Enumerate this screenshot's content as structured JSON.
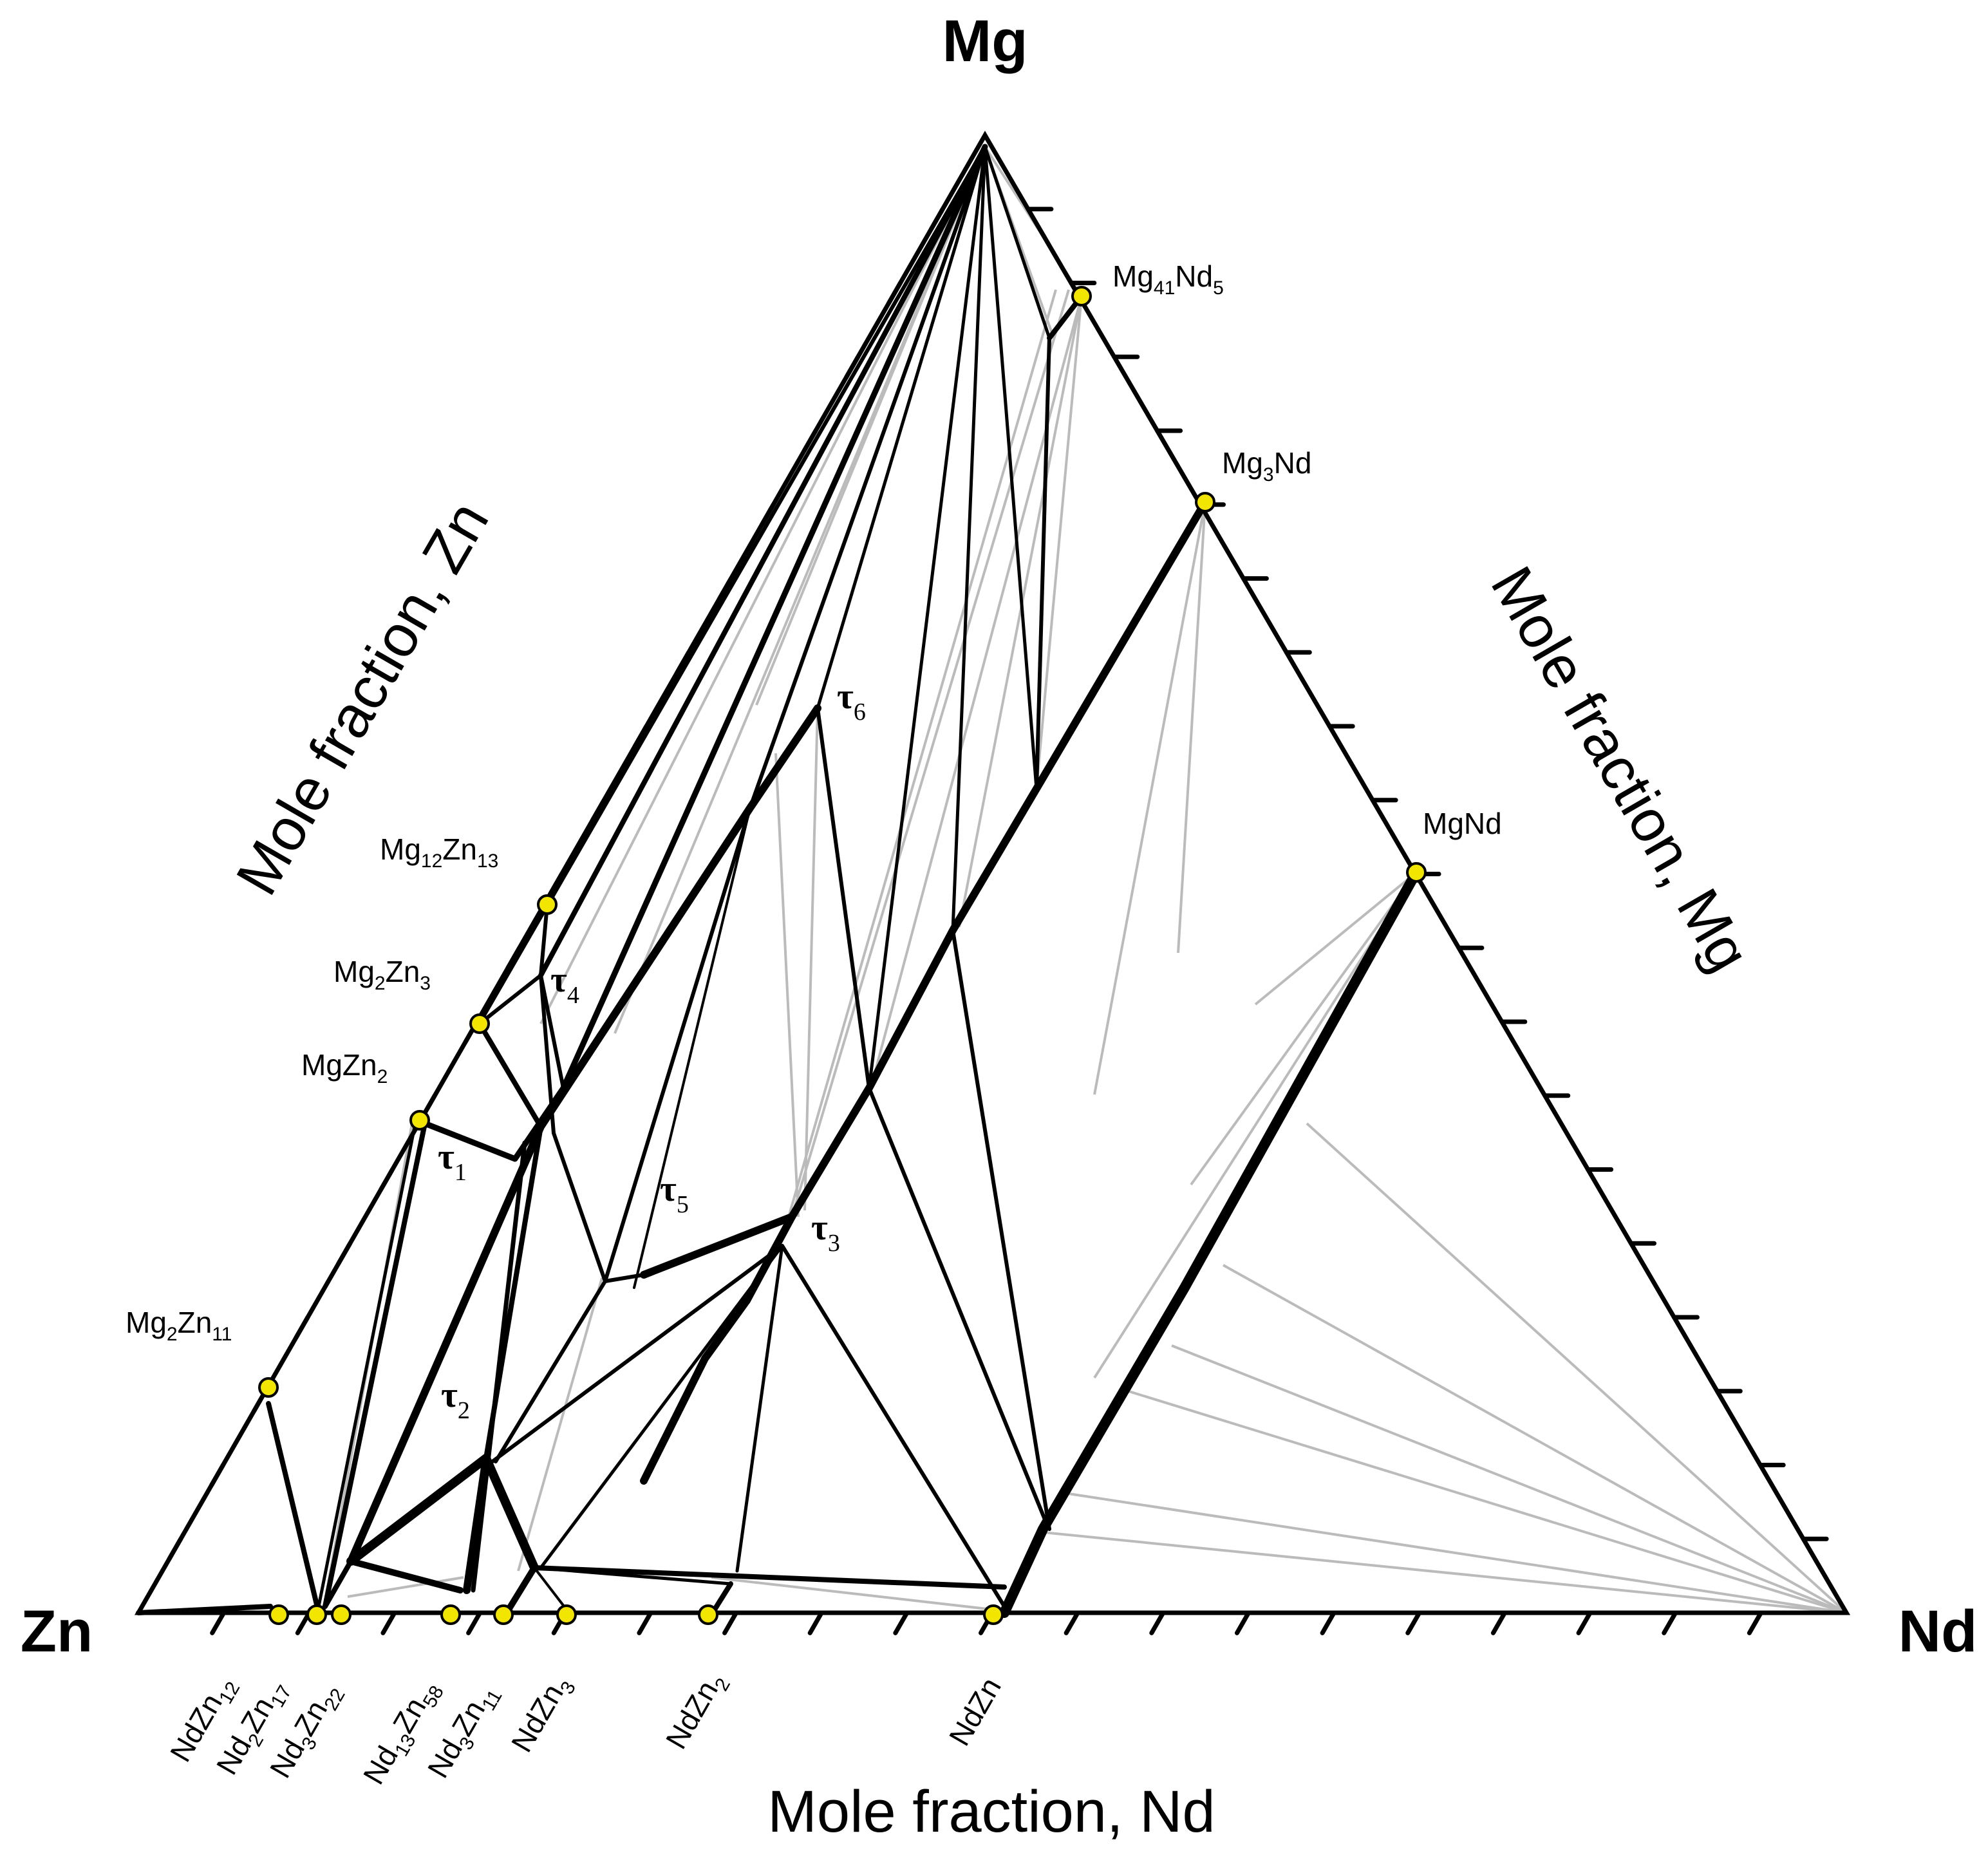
{
  "diagram": {
    "corners": {
      "top": "Mg",
      "left": "Zn",
      "right": "Nd"
    },
    "axes": {
      "left": "Mole fraction, Zn",
      "right": "Mole fraction, Mg",
      "bottom": "Mole fraction, Nd"
    },
    "binary_phases": {
      "mg_nd": [
        {
          "id": "mg41nd5",
          "base": "Mg",
          "s1": "41",
          "mid": "Nd",
          "s2": "5"
        },
        {
          "id": "mg3nd",
          "base": "Mg",
          "s1": "3",
          "mid": "Nd",
          "s2": ""
        },
        {
          "id": "mgnd",
          "base": "MgNd",
          "s1": "",
          "mid": "",
          "s2": ""
        }
      ],
      "mg_zn": [
        {
          "id": "mg12zn13",
          "base": "Mg",
          "s1": "12",
          "mid": "Zn",
          "s2": "13"
        },
        {
          "id": "mg2zn3",
          "base": "Mg",
          "s1": "2",
          "mid": "Zn",
          "s2": "3"
        },
        {
          "id": "mgzn2",
          "base": "MgZn",
          "s1": "2",
          "mid": "",
          "s2": ""
        },
        {
          "id": "mg2zn11",
          "base": "Mg",
          "s1": "2",
          "mid": "Zn",
          "s2": "11"
        }
      ],
      "nd_zn": [
        {
          "id": "ndzn12",
          "base": "NdZn",
          "s1": "12",
          "mid": "",
          "s2": ""
        },
        {
          "id": "nd2zn17",
          "base": "Nd",
          "s1": "2",
          "mid": "Zn",
          "s2": "17"
        },
        {
          "id": "nd3zn22",
          "base": "Nd",
          "s1": "3",
          "mid": "Zn",
          "s2": "22"
        },
        {
          "id": "nd13zn58",
          "base": "Nd",
          "s1": "13",
          "mid": "Zn",
          "s2": "58"
        },
        {
          "id": "nd3zn11",
          "base": "Nd",
          "s1": "3",
          "mid": "Zn",
          "s2": "11"
        },
        {
          "id": "ndzn3",
          "base": "NdZn",
          "s1": "3",
          "mid": "",
          "s2": ""
        },
        {
          "id": "ndzn2",
          "base": "NdZn",
          "s1": "2",
          "mid": "",
          "s2": ""
        },
        {
          "id": "ndzn",
          "base": "NdZn",
          "s1": "",
          "mid": "",
          "s2": ""
        }
      ]
    },
    "ternary_phases": [
      {
        "id": "tau1",
        "symbol": "τ",
        "sub": "1"
      },
      {
        "id": "tau2",
        "symbol": "τ",
        "sub": "2"
      },
      {
        "id": "tau3",
        "symbol": "τ",
        "sub": "3"
      },
      {
        "id": "tau4",
        "symbol": "τ",
        "sub": "4"
      },
      {
        "id": "tau5",
        "symbol": "τ",
        "sub": "5"
      },
      {
        "id": "tau6",
        "symbol": "τ",
        "sub": "6"
      }
    ],
    "colors": {
      "line": "#000000",
      "tie_line": "#bbbbbb",
      "phase_marker": "#f2e600"
    }
  }
}
